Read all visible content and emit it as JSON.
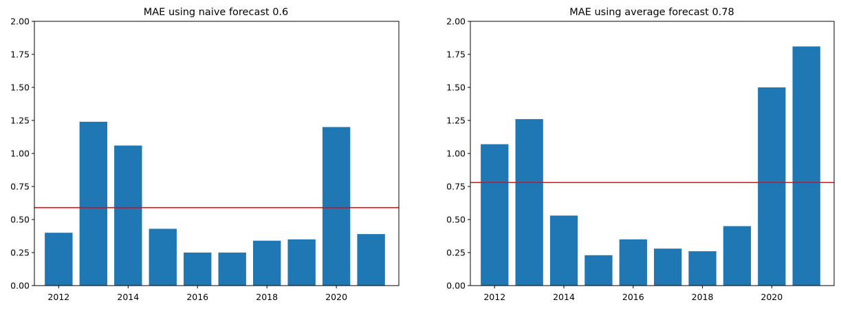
{
  "chart_data": [
    {
      "type": "bar",
      "title": "MAE using naive forecast 0.6",
      "x": [
        2012,
        2013,
        2014,
        2015,
        2016,
        2017,
        2018,
        2019,
        2020,
        2021
      ],
      "values": [
        0.4,
        1.24,
        1.06,
        0.43,
        0.25,
        0.25,
        0.34,
        0.35,
        1.2,
        0.39
      ],
      "xticks": [
        2012,
        2014,
        2016,
        2018,
        2020
      ],
      "yticks": [
        0.0,
        0.25,
        0.5,
        0.75,
        1.0,
        1.25,
        1.5,
        1.75,
        2.0
      ],
      "ytick_labels": [
        "0.00",
        "0.25",
        "0.50",
        "0.75",
        "1.00",
        "1.25",
        "1.50",
        "1.75",
        "2.00"
      ],
      "xlim": [
        2011.3,
        2021.8
      ],
      "ylim": [
        0,
        2
      ],
      "hline": 0.59,
      "bar_color": "#1f77b4",
      "line_color": "#ff0000",
      "xlabel": "",
      "ylabel": "",
      "grid": false
    },
    {
      "type": "bar",
      "title": "MAE using average forecast 0.78",
      "x": [
        2012,
        2013,
        2014,
        2015,
        2016,
        2017,
        2018,
        2019,
        2020,
        2021
      ],
      "values": [
        1.07,
        1.26,
        0.53,
        0.23,
        0.35,
        0.28,
        0.26,
        0.45,
        1.5,
        1.81
      ],
      "xticks": [
        2012,
        2014,
        2016,
        2018,
        2020
      ],
      "yticks": [
        0.0,
        0.25,
        0.5,
        0.75,
        1.0,
        1.25,
        1.5,
        1.75,
        2.0
      ],
      "ytick_labels": [
        "0.00",
        "0.25",
        "0.50",
        "0.75",
        "1.00",
        "1.25",
        "1.50",
        "1.75",
        "2.00"
      ],
      "xlim": [
        2011.3,
        2021.8
      ],
      "ylim": [
        0,
        2
      ],
      "hline": 0.78,
      "bar_color": "#1f77b4",
      "line_color": "#ff0000",
      "xlabel": "",
      "ylabel": "",
      "grid": false
    }
  ]
}
